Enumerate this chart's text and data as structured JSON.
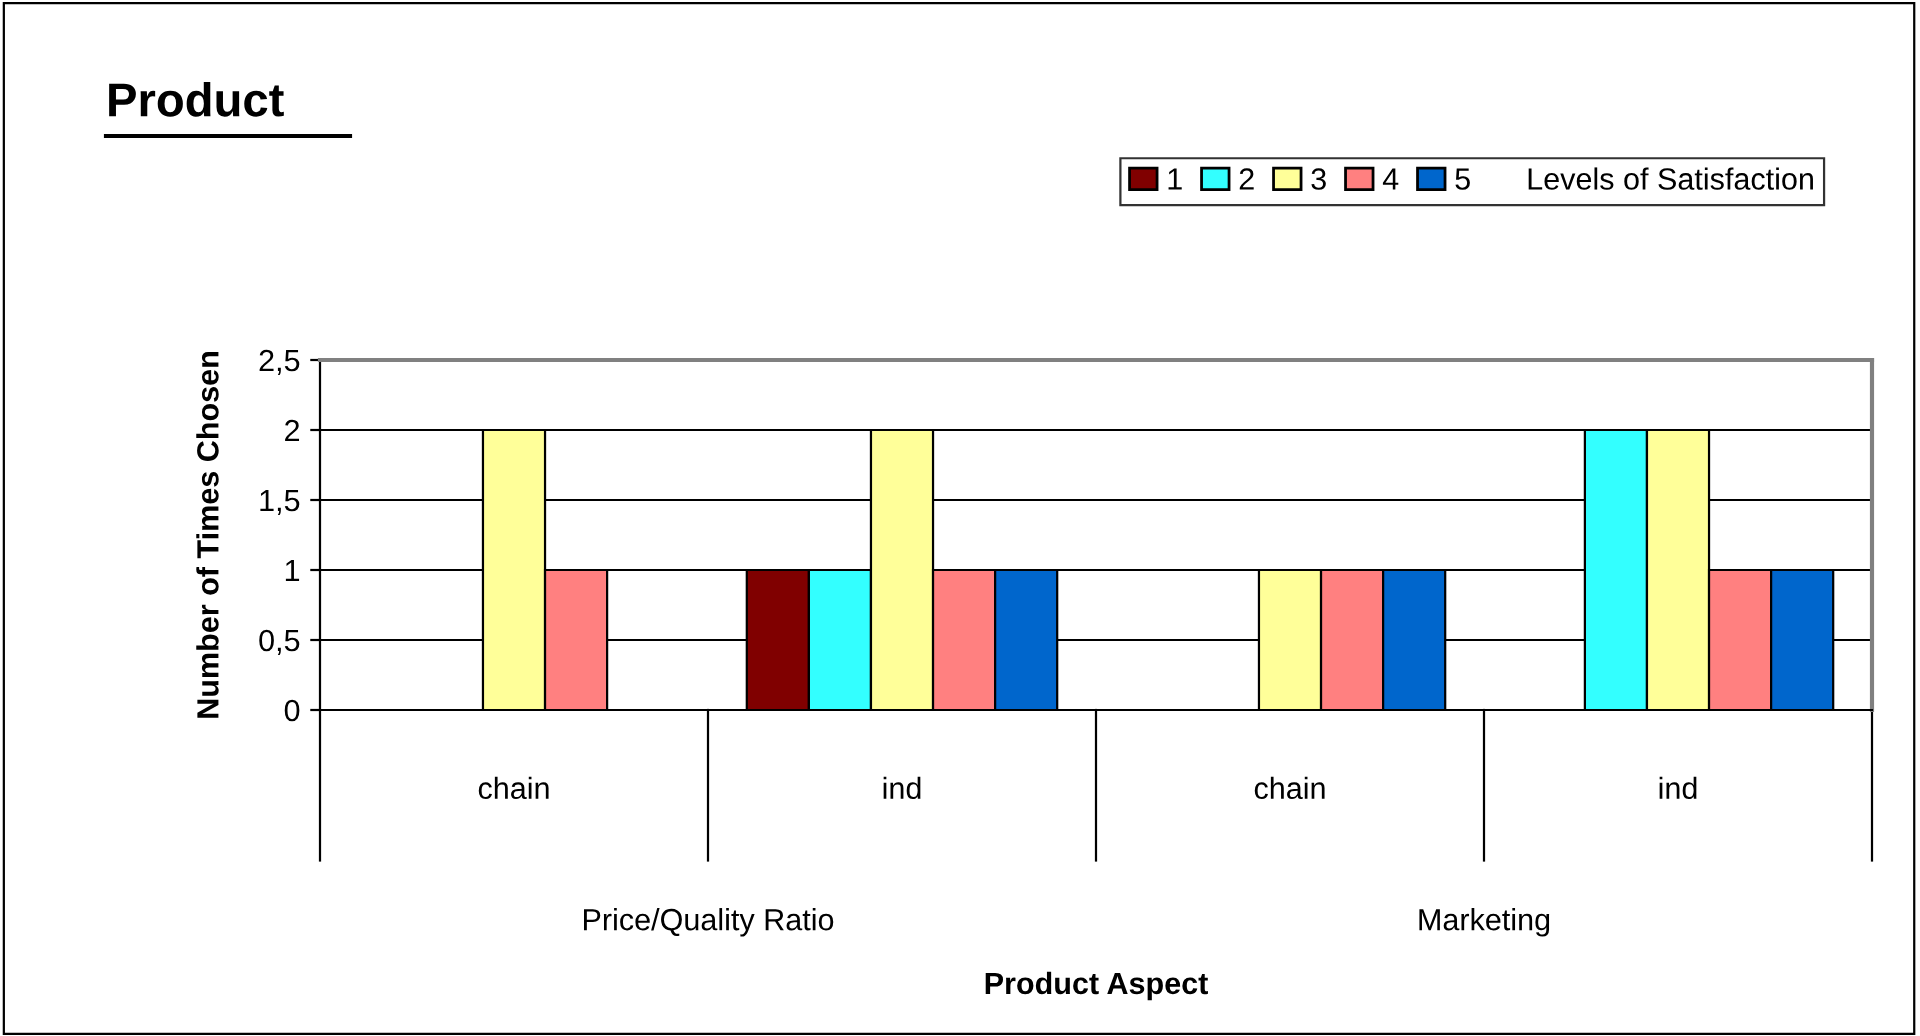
{
  "chart_data": {
    "type": "bar",
    "title": "Product",
    "ylabel": "Number of Times Chosen",
    "legend_title": "Levels of Satisfaction",
    "categories": [
      "chain",
      "ind",
      "chain",
      "ind"
    ],
    "annotations": [
      "Price/Quality Ratio",
      "Marketing",
      "Product Aspect"
    ],
    "series": [
      {
        "name": "1",
        "color": "#800000",
        "values": [
          null,
          1,
          null,
          null
        ]
      },
      {
        "name": "2",
        "color": "#33ffff",
        "values": [
          null,
          1,
          null,
          2
        ]
      },
      {
        "name": "3",
        "color": "#ffff99",
        "values": [
          2,
          2,
          1,
          2
        ]
      },
      {
        "name": "4",
        "color": "#ff8080",
        "values": [
          1,
          1,
          1,
          1
        ]
      },
      {
        "name": "5",
        "color": "#0066cc",
        "values": [
          null,
          1,
          1,
          1
        ]
      }
    ],
    "ylim": [
      0,
      2.5
    ],
    "yticks": [
      0,
      {
        "value": 0.5,
        "label": "0,5"
      },
      1,
      {
        "value": 1.5,
        "label": "1,5"
      },
      2,
      {
        "value": 2.5,
        "label": "2,5"
      }
    ],
    "grid": "y",
    "legend": "top right"
  }
}
